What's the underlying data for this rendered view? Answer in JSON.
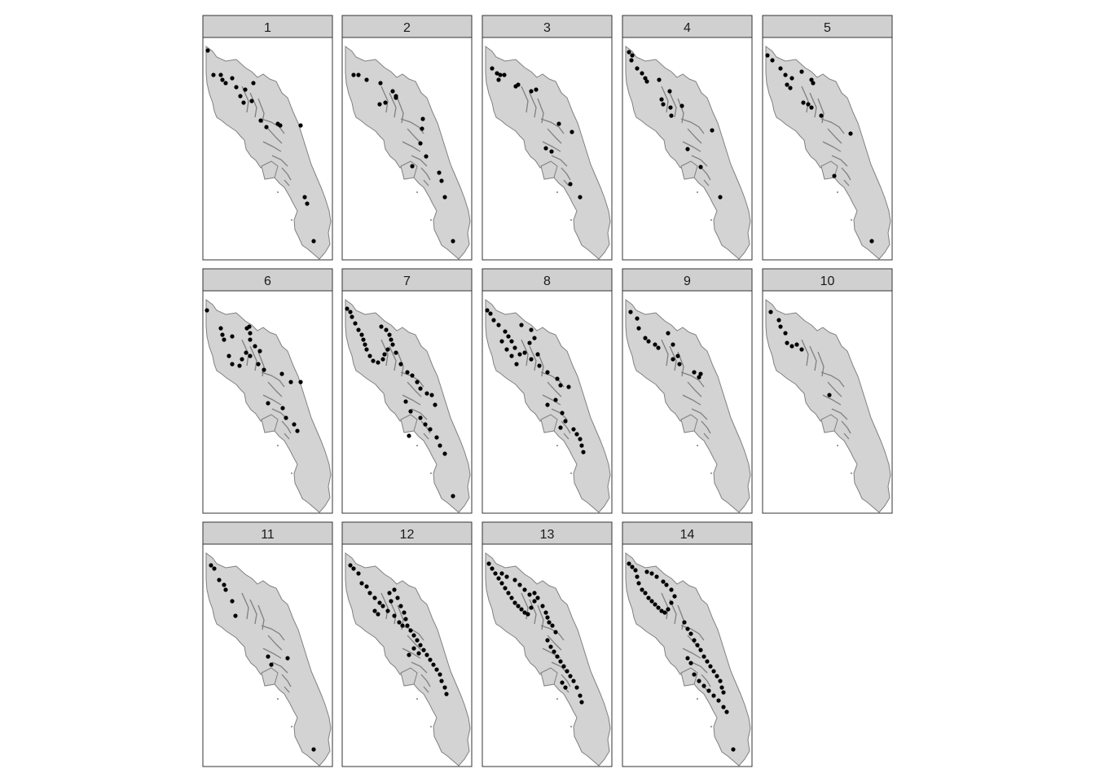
{
  "figure": {
    "panels": [
      {
        "label": "1"
      },
      {
        "label": "2"
      },
      {
        "label": "3"
      },
      {
        "label": "4"
      },
      {
        "label": "5"
      },
      {
        "label": "6"
      },
      {
        "label": "7"
      },
      {
        "label": "8"
      },
      {
        "label": "9"
      },
      {
        "label": "10"
      },
      {
        "label": "11"
      },
      {
        "label": "12"
      },
      {
        "label": "13"
      },
      {
        "label": "14"
      }
    ]
  },
  "colors": {
    "land": "#d3d3d3",
    "coast": "#808080",
    "strip": "#d0d0d0",
    "frame": "#333333",
    "points": "#000000"
  }
}
